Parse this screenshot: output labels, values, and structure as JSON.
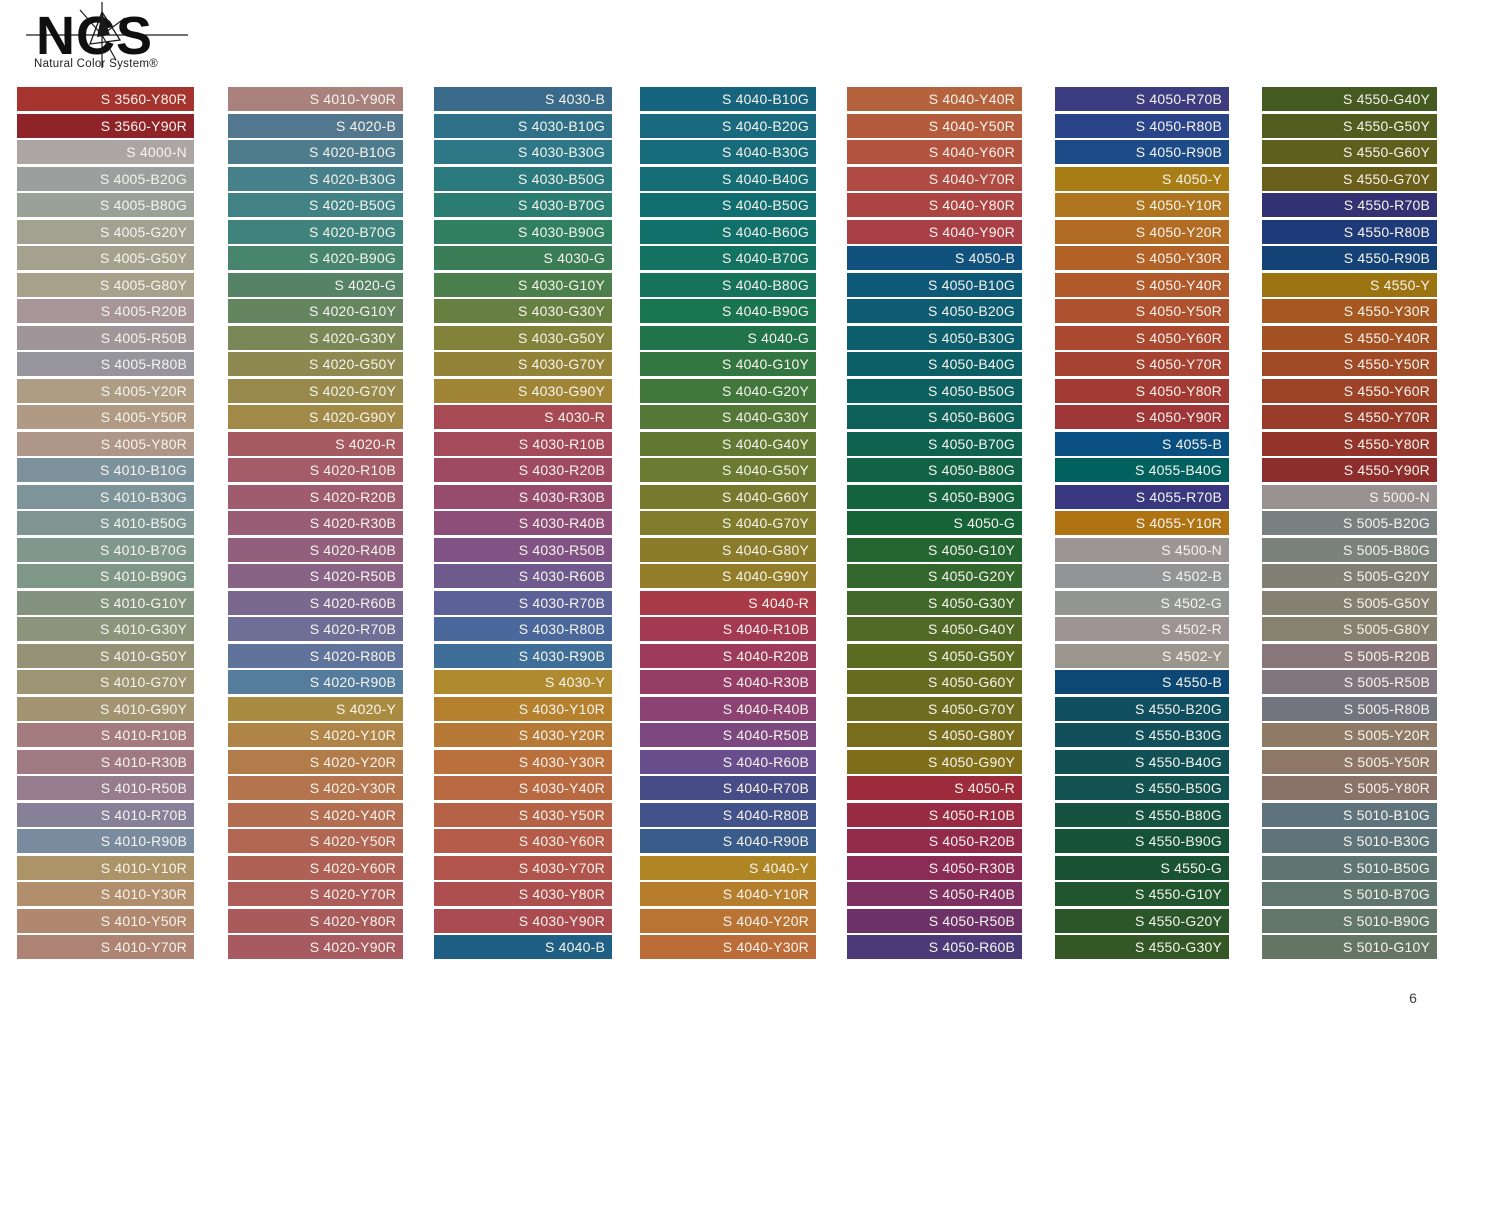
{
  "logo": {
    "title": "NCS",
    "subtitle": "Natural Color System®"
  },
  "page_number": "6",
  "chart_data": {
    "type": "table",
    "title": "NCS color swatch chart",
    "label_color": "#F7F4EE",
    "columns": [
      [
        {
          "code": "S 3560-Y80R",
          "hex": "#A5332E"
        },
        {
          "code": "S 3560-Y90R",
          "hex": "#8E2428"
        },
        {
          "code": "S 4000-N",
          "hex": "#ABA5A3"
        },
        {
          "code": "S 4005-B20G",
          "hex": "#9BA09E"
        },
        {
          "code": "S 4005-B80G",
          "hex": "#9AA199"
        },
        {
          "code": "S 4005-G20Y",
          "hex": "#A1A292"
        },
        {
          "code": "S 4005-G50Y",
          "hex": "#A4A28E"
        },
        {
          "code": "S 4005-G80Y",
          "hex": "#A7A08B"
        },
        {
          "code": "S 4005-R20B",
          "hex": "#A79597"
        },
        {
          "code": "S 4005-R50B",
          "hex": "#A09599"
        },
        {
          "code": "S 4005-R80B",
          "hex": "#95959B"
        },
        {
          "code": "S 4005-Y20R",
          "hex": "#AF9C85"
        },
        {
          "code": "S 4005-Y50R",
          "hex": "#B09A84"
        },
        {
          "code": "S 4005-Y80R",
          "hex": "#AE9688"
        },
        {
          "code": "S 4010-B10G",
          "hex": "#7D929C"
        },
        {
          "code": "S 4010-B30G",
          "hex": "#7D949A"
        },
        {
          "code": "S 4010-B50G",
          "hex": "#7E9592"
        },
        {
          "code": "S 4010-B70G",
          "hex": "#80978D"
        },
        {
          "code": "S 4010-B90G",
          "hex": "#7F9786"
        },
        {
          "code": "S 4010-G10Y",
          "hex": "#849380"
        },
        {
          "code": "S 4010-G30Y",
          "hex": "#8C947C"
        },
        {
          "code": "S 4010-G50Y",
          "hex": "#959377"
        },
        {
          "code": "S 4010-G70Y",
          "hex": "#9C9473"
        },
        {
          "code": "S 4010-G90Y",
          "hex": "#A29371"
        },
        {
          "code": "S 4010-R10B",
          "hex": "#A47B7E"
        },
        {
          "code": "S 4010-R30B",
          "hex": "#A07A82"
        },
        {
          "code": "S 4010-R50B",
          "hex": "#967C8D"
        },
        {
          "code": "S 4010-R70B",
          "hex": "#868099"
        },
        {
          "code": "S 4010-R90B",
          "hex": "#7A8BA0"
        },
        {
          "code": "S 4010-Y10R",
          "hex": "#AC9468"
        },
        {
          "code": "S 4010-Y30R",
          "hex": "#B18E6C"
        },
        {
          "code": "S 4010-Y50R",
          "hex": "#B0886F"
        },
        {
          "code": "S 4010-Y70R",
          "hex": "#AD8374"
        }
      ],
      [
        {
          "code": "S 4010-Y90R",
          "hex": "#A9827E"
        },
        {
          "code": "S 4020-B",
          "hex": "#53778E"
        },
        {
          "code": "S 4020-B10G",
          "hex": "#4E7C8C"
        },
        {
          "code": "S 4020-B30G",
          "hex": "#46808A"
        },
        {
          "code": "S 4020-B50G",
          "hex": "#418284"
        },
        {
          "code": "S 4020-B70G",
          "hex": "#3F837C"
        },
        {
          "code": "S 4020-B90G",
          "hex": "#47856E"
        },
        {
          "code": "S 4020-G",
          "hex": "#568266"
        },
        {
          "code": "S 4020-G10Y",
          "hex": "#64855F"
        },
        {
          "code": "S 4020-G30Y",
          "hex": "#7A8756"
        },
        {
          "code": "S 4020-G50Y",
          "hex": "#8D8950"
        },
        {
          "code": "S 4020-G70Y",
          "hex": "#978A4C"
        },
        {
          "code": "S 4020-G90Y",
          "hex": "#A18A48"
        },
        {
          "code": "S 4020-R",
          "hex": "#A65B62"
        },
        {
          "code": "S 4020-R10B",
          "hex": "#A35C68"
        },
        {
          "code": "S 4020-R20B",
          "hex": "#9E5C6E"
        },
        {
          "code": "S 4020-R30B",
          "hex": "#995D74"
        },
        {
          "code": "S 4020-R40B",
          "hex": "#92607D"
        },
        {
          "code": "S 4020-R50B",
          "hex": "#886386"
        },
        {
          "code": "S 4020-R60B",
          "hex": "#7B688F"
        },
        {
          "code": "S 4020-R70B",
          "hex": "#6E6E97"
        },
        {
          "code": "S 4020-R80B",
          "hex": "#60739B"
        },
        {
          "code": "S 4020-R90B",
          "hex": "#567C9D"
        },
        {
          "code": "S 4020-Y",
          "hex": "#AA8B42"
        },
        {
          "code": "S 4020-Y10R",
          "hex": "#B08347"
        },
        {
          "code": "S 4020-Y20R",
          "hex": "#B27B4A"
        },
        {
          "code": "S 4020-Y30R",
          "hex": "#B4744E"
        },
        {
          "code": "S 4020-Y40R",
          "hex": "#B36D51"
        },
        {
          "code": "S 4020-Y50R",
          "hex": "#B16754"
        },
        {
          "code": "S 4020-Y60R",
          "hex": "#AF6156"
        },
        {
          "code": "S 4020-Y70R",
          "hex": "#AC5D59"
        },
        {
          "code": "S 4020-Y80R",
          "hex": "#A95B5C"
        },
        {
          "code": "S 4020-Y90R",
          "hex": "#A75A5F"
        }
      ],
      [
        {
          "code": "S 4030-B",
          "hex": "#396A8A"
        },
        {
          "code": "S 4030-B10G",
          "hex": "#2F7089"
        },
        {
          "code": "S 4030-B30G",
          "hex": "#2D7787"
        },
        {
          "code": "S 4030-B50G",
          "hex": "#2A797C"
        },
        {
          "code": "S 4030-B70G",
          "hex": "#2B7C71"
        },
        {
          "code": "S 4030-B90G",
          "hex": "#2F7F60"
        },
        {
          "code": "S 4030-G",
          "hex": "#3A7D56"
        },
        {
          "code": "S 4030-G10Y",
          "hex": "#4B7F4C"
        },
        {
          "code": "S 4030-G30Y",
          "hex": "#677F41"
        },
        {
          "code": "S 4030-G50Y",
          "hex": "#82823B"
        },
        {
          "code": "S 4030-G70Y",
          "hex": "#928338"
        },
        {
          "code": "S 4030-G90Y",
          "hex": "#9F8535"
        },
        {
          "code": "S 4030-R",
          "hex": "#A84A53"
        },
        {
          "code": "S 4030-R10B",
          "hex": "#A44A5A"
        },
        {
          "code": "S 4030-R20B",
          "hex": "#9E4A63"
        },
        {
          "code": "S 4030-R30B",
          "hex": "#974C6D"
        },
        {
          "code": "S 4030-R40B",
          "hex": "#8D4E78"
        },
        {
          "code": "S 4030-R50B",
          "hex": "#815384"
        },
        {
          "code": "S 4030-R60B",
          "hex": "#6F5A8E"
        },
        {
          "code": "S 4030-R70B",
          "hex": "#5C6298"
        },
        {
          "code": "S 4030-R80B",
          "hex": "#4B689D"
        },
        {
          "code": "S 4030-R90B",
          "hex": "#3F6F99"
        },
        {
          "code": "S 4030-Y",
          "hex": "#B08A2F"
        },
        {
          "code": "S 4030-Y10R",
          "hex": "#B5812F"
        },
        {
          "code": "S 4030-Y20R",
          "hex": "#B77936"
        },
        {
          "code": "S 4030-Y30R",
          "hex": "#B9703C"
        },
        {
          "code": "S 4030-Y40R",
          "hex": "#B86942"
        },
        {
          "code": "S 4030-Y50R",
          "hex": "#B66246"
        },
        {
          "code": "S 4030-Y60R",
          "hex": "#B45B49"
        },
        {
          "code": "S 4030-Y70R",
          "hex": "#B1544C"
        },
        {
          "code": "S 4030-Y80R",
          "hex": "#AD4F4E"
        },
        {
          "code": "S 4030-Y90R",
          "hex": "#A94B50"
        },
        {
          "code": "S 4040-B",
          "hex": "#1F5F84"
        }
      ],
      [
        {
          "code": "S 4040-B10G",
          "hex": "#17647E"
        },
        {
          "code": "S 4040-B20G",
          "hex": "#196A7E"
        },
        {
          "code": "S 4040-B30G",
          "hex": "#186B7A"
        },
        {
          "code": "S 4040-B40G",
          "hex": "#156D76"
        },
        {
          "code": "S 4040-B50G",
          "hex": "#116E70"
        },
        {
          "code": "S 4040-B60G",
          "hex": "#12706A"
        },
        {
          "code": "S 4040-B70G",
          "hex": "#137262"
        },
        {
          "code": "S 4040-B80G",
          "hex": "#167359"
        },
        {
          "code": "S 4040-B90G",
          "hex": "#197450"
        },
        {
          "code": "S 4040-G",
          "hex": "#21744A"
        },
        {
          "code": "S 4040-G10Y",
          "hex": "#347641"
        },
        {
          "code": "S 4040-G20Y",
          "hex": "#42773C"
        },
        {
          "code": "S 4040-G30Y",
          "hex": "#537838"
        },
        {
          "code": "S 4040-G40Y",
          "hex": "#617933"
        },
        {
          "code": "S 4040-G50Y",
          "hex": "#6D7A31"
        },
        {
          "code": "S 4040-G60Y",
          "hex": "#777A2E"
        },
        {
          "code": "S 4040-G70Y",
          "hex": "#817B2C"
        },
        {
          "code": "S 4040-G80Y",
          "hex": "#8A7C2A"
        },
        {
          "code": "S 4040-G90Y",
          "hex": "#947D28"
        },
        {
          "code": "S 4040-R",
          "hex": "#A93B49"
        },
        {
          "code": "S 4040-R10B",
          "hex": "#A43A51"
        },
        {
          "code": "S 4040-R20B",
          "hex": "#9E3A5C"
        },
        {
          "code": "S 4040-R30B",
          "hex": "#963D67"
        },
        {
          "code": "S 4040-R40B",
          "hex": "#8C4272"
        },
        {
          "code": "S 4040-R50B",
          "hex": "#7D477F"
        },
        {
          "code": "S 4040-R60B",
          "hex": "#684E8D"
        },
        {
          "code": "S 4040-R70B",
          "hex": "#474B86"
        },
        {
          "code": "S 4040-R80B",
          "hex": "#42538C"
        },
        {
          "code": "S 4040-R90B",
          "hex": "#3A5C8A"
        },
        {
          "code": "S 4040-Y",
          "hex": "#B08524"
        },
        {
          "code": "S 4040-Y10R",
          "hex": "#B67D2C"
        },
        {
          "code": "S 4040-Y20R",
          "hex": "#B97434"
        },
        {
          "code": "S 4040-Y30R",
          "hex": "#BB6C39"
        }
      ],
      [
        {
          "code": "S 4040-Y40R",
          "hex": "#B4633C"
        },
        {
          "code": "S 4040-Y50R",
          "hex": "#B45B3E"
        },
        {
          "code": "S 4040-Y60R",
          "hex": "#B25340"
        },
        {
          "code": "S 4040-Y70R",
          "hex": "#AF4B42"
        },
        {
          "code": "S 4040-Y80R",
          "hex": "#AC4444"
        },
        {
          "code": "S 4040-Y90R",
          "hex": "#A93F46"
        },
        {
          "code": "S 4050-B",
          "hex": "#10527D"
        },
        {
          "code": "S 4050-B10G",
          "hex": "#0E5878"
        },
        {
          "code": "S 4050-B20G",
          "hex": "#0E5C72"
        },
        {
          "code": "S 4050-B30G",
          "hex": "#0D5E6C"
        },
        {
          "code": "S 4050-B40G",
          "hex": "#0C5F66"
        },
        {
          "code": "S 4050-B50G",
          "hex": "#0C6060"
        },
        {
          "code": "S 4050-B60G",
          "hex": "#0D6158"
        },
        {
          "code": "S 4050-B70G",
          "hex": "#0F6250"
        },
        {
          "code": "S 4050-B80G",
          "hex": "#116246"
        },
        {
          "code": "S 4050-B90G",
          "hex": "#13633E"
        },
        {
          "code": "S 4050-G",
          "hex": "#176338"
        },
        {
          "code": "S 4050-G10Y",
          "hex": "#256532"
        },
        {
          "code": "S 4050-G20Y",
          "hex": "#34672D"
        },
        {
          "code": "S 4050-G30Y",
          "hex": "#426929"
        },
        {
          "code": "S 4050-G40Y",
          "hex": "#506A26"
        },
        {
          "code": "S 4050-G50Y",
          "hex": "#5C6B22"
        },
        {
          "code": "S 4050-G60Y",
          "hex": "#656C20"
        },
        {
          "code": "S 4050-G70Y",
          "hex": "#6E6C1E"
        },
        {
          "code": "S 4050-G80Y",
          "hex": "#776D1C"
        },
        {
          "code": "S 4050-G90Y",
          "hex": "#816E1A"
        },
        {
          "code": "S 4050-R",
          "hex": "#9E2B3C"
        },
        {
          "code": "S 4050-R10B",
          "hex": "#992A43"
        },
        {
          "code": "S 4050-R20B",
          "hex": "#922A4C"
        },
        {
          "code": "S 4050-R30B",
          "hex": "#8A2C56"
        },
        {
          "code": "S 4050-R40B",
          "hex": "#7E3061"
        },
        {
          "code": "S 4050-R50B",
          "hex": "#6C3268"
        },
        {
          "code": "S 4050-R60B",
          "hex": "#4A3B78"
        }
      ],
      [
        {
          "code": "S 4050-R70B",
          "hex": "#3B3D80"
        },
        {
          "code": "S 4050-R80B",
          "hex": "#294489"
        },
        {
          "code": "S 4050-R90B",
          "hex": "#1D4B87"
        },
        {
          "code": "S 4050-Y",
          "hex": "#A97D15"
        },
        {
          "code": "S 4050-Y10R",
          "hex": "#AF741E"
        },
        {
          "code": "S 4050-Y20R",
          "hex": "#B16B23"
        },
        {
          "code": "S 4050-Y30R",
          "hex": "#B26127"
        },
        {
          "code": "S 4050-Y40R",
          "hex": "#B0592B"
        },
        {
          "code": "S 4050-Y50R",
          "hex": "#AE512E"
        },
        {
          "code": "S 4050-Y60R",
          "hex": "#AA4930"
        },
        {
          "code": "S 4050-Y70R",
          "hex": "#A64231"
        },
        {
          "code": "S 4050-Y80R",
          "hex": "#A23B33"
        },
        {
          "code": "S 4050-Y90R",
          "hex": "#9E3536"
        },
        {
          "code": "S 4055-B",
          "hex": "#0A4F81"
        },
        {
          "code": "S 4055-B40G",
          "hex": "#00615F"
        },
        {
          "code": "S 4055-R70B",
          "hex": "#39377F"
        },
        {
          "code": "S 4055-Y10R",
          "hex": "#B07314"
        },
        {
          "code": "S 4500-N",
          "hex": "#9B9594"
        },
        {
          "code": "S 4502-B",
          "hex": "#929495"
        },
        {
          "code": "S 4502-G",
          "hex": "#939690"
        },
        {
          "code": "S 4502-R",
          "hex": "#9C9392"
        },
        {
          "code": "S 4502-Y",
          "hex": "#9B968D"
        },
        {
          "code": "S 4550-B",
          "hex": "#0D4875"
        },
        {
          "code": "S 4550-B20G",
          "hex": "#104F5F"
        },
        {
          "code": "S 4550-B30G",
          "hex": "#11505A"
        },
        {
          "code": "S 4550-B40G",
          "hex": "#115155"
        },
        {
          "code": "S 4550-B50G",
          "hex": "#125250"
        },
        {
          "code": "S 4550-B80G",
          "hex": "#15523F"
        },
        {
          "code": "S 4550-B90G",
          "hex": "#165238"
        },
        {
          "code": "S 4550-G",
          "hex": "#195333"
        },
        {
          "code": "S 4550-G10Y",
          "hex": "#21552D"
        },
        {
          "code": "S 4550-G20Y",
          "hex": "#2A5629"
        },
        {
          "code": "S 4550-G30Y",
          "hex": "#345825"
        }
      ],
      [
        {
          "code": "S 4550-G40Y",
          "hex": "#445A21"
        },
        {
          "code": "S 4550-G50Y",
          "hex": "#525C1F"
        },
        {
          "code": "S 4550-G60Y",
          "hex": "#5E5E1D"
        },
        {
          "code": "S 4550-G70Y",
          "hex": "#695F1B"
        },
        {
          "code": "S 4550-R70B",
          "hex": "#323273"
        },
        {
          "code": "S 4550-R80B",
          "hex": "#1F3A79"
        },
        {
          "code": "S 4550-R90B",
          "hex": "#154276"
        },
        {
          "code": "S 4550-Y",
          "hex": "#9C7311"
        },
        {
          "code": "S 4550-Y30R",
          "hex": "#A5581F"
        },
        {
          "code": "S 4550-Y40R",
          "hex": "#A35122"
        },
        {
          "code": "S 4550-Y50R",
          "hex": "#A04A25"
        },
        {
          "code": "S 4550-Y60R",
          "hex": "#9C4327"
        },
        {
          "code": "S 4550-Y70R",
          "hex": "#983C29"
        },
        {
          "code": "S 4550-Y80R",
          "hex": "#94352B"
        },
        {
          "code": "S 4550-Y90R",
          "hex": "#8D2E2C"
        },
        {
          "code": "S 5000-N",
          "hex": "#979192"
        },
        {
          "code": "S 5005-B20G",
          "hex": "#798180"
        },
        {
          "code": "S 5005-B80G",
          "hex": "#7B817B"
        },
        {
          "code": "S 5005-G20Y",
          "hex": "#808174"
        },
        {
          "code": "S 5005-G50Y",
          "hex": "#848172"
        },
        {
          "code": "S 5005-G80Y",
          "hex": "#87816F"
        },
        {
          "code": "S 5005-R20B",
          "hex": "#89767B"
        },
        {
          "code": "S 5005-R50B",
          "hex": "#82757E"
        },
        {
          "code": "S 5005-R80B",
          "hex": "#74747E"
        },
        {
          "code": "S 5005-Y20R",
          "hex": "#8E7B66"
        },
        {
          "code": "S 5005-Y50R",
          "hex": "#8E7767"
        },
        {
          "code": "S 5005-Y80R",
          "hex": "#8B7268"
        },
        {
          "code": "S 5010-B10G",
          "hex": "#5F737C"
        },
        {
          "code": "S 5010-B30G",
          "hex": "#5F747A"
        },
        {
          "code": "S 5010-B50G",
          "hex": "#5F7572"
        },
        {
          "code": "S 5010-B70G",
          "hex": "#61766E"
        },
        {
          "code": "S 5010-B90G",
          "hex": "#62766A"
        },
        {
          "code": "S 5010-G10Y",
          "hex": "#647663"
        }
      ]
    ]
  }
}
